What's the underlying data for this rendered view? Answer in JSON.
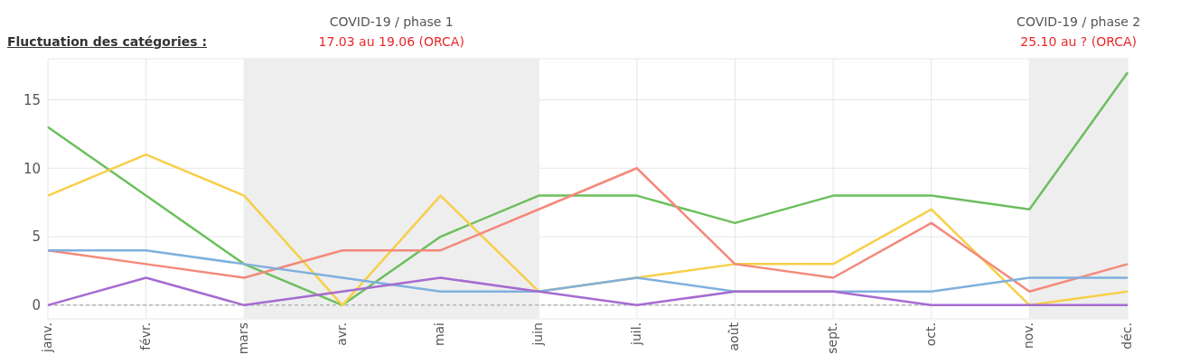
{
  "chart_data": {
    "type": "line",
    "title": "Fluctuation des catégories :",
    "categories": [
      "janv.",
      "févr.",
      "mars",
      "avr.",
      "mai",
      "juin",
      "juil.",
      "août",
      "sept.",
      "oct.",
      "nov.",
      "déc."
    ],
    "series": [
      {
        "color": "#6cbf5e",
        "values": [
          13,
          8,
          3,
          0,
          5,
          8,
          8,
          6,
          8,
          8,
          7,
          17
        ]
      },
      {
        "color": "#f7cf48",
        "values": [
          8,
          11,
          8,
          0,
          8,
          1,
          2,
          3,
          3,
          7,
          0,
          1
        ]
      },
      {
        "color": "#f4897b",
        "values": [
          4,
          3,
          2,
          4,
          4,
          7,
          10,
          3,
          2,
          6,
          1,
          3
        ]
      },
      {
        "color": "#7fb0dd",
        "values": [
          4,
          4,
          3,
          2,
          1,
          1,
          2,
          1,
          1,
          1,
          2,
          2
        ]
      },
      {
        "color": "#a66bd0",
        "values": [
          0,
          2,
          0,
          1,
          2,
          1,
          0,
          1,
          1,
          0,
          0,
          0
        ]
      }
    ],
    "ylim": [
      -1,
      18
    ],
    "yticks": [
      0,
      5,
      10,
      15
    ],
    "grid": true,
    "marker": "none",
    "line_style": "solid",
    "bands": [
      {
        "axis": "x",
        "from": "mars",
        "to": "juin",
        "label": "COVID-19 / phase 1",
        "color": "#eeeeee"
      },
      {
        "axis": "x",
        "from": "nov.",
        "to": "déc.",
        "label": "COVID-19 / phase 2",
        "color": "#eeeeee"
      }
    ],
    "annotations": [
      "17.03 au 19.06 (ORCA)",
      "25.10 au ? (ORCA)"
    ],
    "ref_lines": [
      {
        "axis": "y",
        "value": 0,
        "color": "#999999",
        "line_style": "dashed"
      }
    ]
  }
}
